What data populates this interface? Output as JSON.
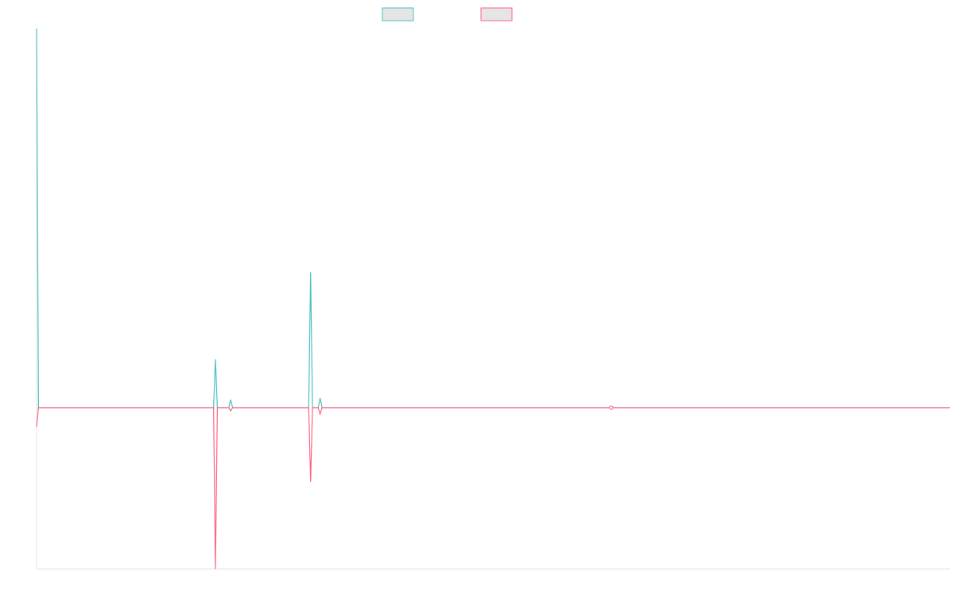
{
  "chart_data": {
    "type": "line",
    "title": "",
    "xlabel": "",
    "ylabel": "",
    "legend_placement": "top-center",
    "grid": false,
    "x": [
      0,
      1,
      2,
      3,
      4,
      5,
      6,
      7,
      8,
      9,
      10,
      11,
      12,
      13,
      14,
      15,
      16,
      17,
      18,
      19,
      20,
      21,
      22,
      23,
      24,
      25,
      26,
      27,
      28,
      29,
      30,
      31,
      32,
      33,
      34,
      35,
      36,
      37,
      38,
      39,
      40,
      41,
      42,
      43,
      44,
      45,
      46,
      47,
      48,
      49,
      50,
      51,
      52,
      53,
      54,
      55,
      56,
      57,
      58,
      59,
      60,
      61,
      62,
      63,
      64,
      65,
      66,
      67,
      68,
      69,
      70,
      71,
      72,
      73,
      74,
      75,
      76,
      77,
      78,
      79,
      80,
      81,
      82,
      83,
      84,
      85,
      86,
      87,
      88,
      89,
      90,
      91,
      92,
      93,
      94,
      95,
      96,
      97,
      98,
      99,
      100,
      101,
      102,
      103,
      104,
      105,
      106,
      107,
      108,
      109,
      110,
      111,
      112,
      113,
      114,
      115,
      116,
      117,
      118,
      119,
      120,
      121,
      122,
      123,
      124,
      125,
      126,
      127,
      128,
      129,
      130,
      131,
      132,
      133,
      134,
      135,
      136,
      137,
      138,
      139,
      140,
      141,
      142,
      143,
      144,
      145,
      146,
      147,
      148,
      149,
      150,
      151,
      152,
      153,
      154,
      155,
      156,
      157,
      158,
      159,
      160,
      161,
      162,
      163,
      164,
      165,
      166,
      167,
      168,
      169,
      170,
      171,
      172,
      173,
      174,
      175,
      176,
      177,
      178,
      179,
      180,
      181,
      182,
      183,
      184,
      185,
      186,
      187,
      188,
      189,
      190,
      191,
      192,
      193,
      194,
      195,
      196,
      197,
      198,
      199,
      200,
      201,
      202,
      203,
      204,
      205,
      206,
      207,
      208,
      209,
      210,
      211,
      212,
      213,
      214,
      215,
      216,
      217,
      218,
      219,
      220,
      221,
      222,
      223,
      224,
      225,
      226,
      227,
      228,
      229,
      230,
      231,
      232,
      233,
      234,
      235,
      236,
      237,
      238,
      239,
      240,
      241,
      242,
      243,
      244,
      245,
      246,
      247,
      248,
      249,
      250,
      251,
      252,
      253,
      254,
      255,
      256,
      257,
      258,
      259,
      260,
      261,
      262,
      263,
      264,
      265,
      266,
      267,
      268,
      269,
      270,
      271,
      272,
      273,
      274,
      275,
      276,
      277,
      278,
      279,
      280,
      281,
      282,
      283,
      284,
      285,
      286,
      287,
      288,
      289,
      290,
      291,
      292,
      293,
      294,
      295,
      296,
      297,
      298,
      299,
      300,
      301,
      302,
      303,
      304,
      305,
      306,
      307,
      308,
      309,
      310,
      311,
      312,
      313,
      314,
      315,
      316,
      317,
      318,
      319,
      320,
      321,
      322,
      323,
      324,
      325,
      326,
      327,
      328,
      329,
      330,
      331,
      332,
      333,
      334,
      335,
      336,
      337,
      338,
      339,
      340,
      341,
      342,
      343,
      344,
      345,
      346,
      347,
      348,
      349,
      350,
      351,
      352,
      353,
      354,
      355,
      356,
      357,
      358,
      359,
      360,
      361,
      362,
      363,
      364,
      365,
      366,
      367,
      368,
      369,
      370,
      371,
      372,
      373,
      374,
      375,
      376,
      377,
      378,
      379,
      380,
      381,
      382,
      383,
      384,
      385,
      386,
      387,
      388,
      389,
      390,
      391,
      392,
      393,
      394,
      395,
      396,
      397,
      398,
      399,
      400,
      401,
      402,
      403,
      404,
      405,
      406,
      407,
      408,
      409,
      410,
      411,
      412,
      413,
      414,
      415,
      416,
      417,
      418,
      419,
      420,
      421,
      422,
      423,
      424,
      425,
      426,
      427,
      428,
      429,
      430,
      431,
      432,
      433,
      434,
      435,
      436,
      437,
      438,
      439,
      440,
      441,
      442,
      443,
      444,
      445,
      446,
      447,
      448,
      449,
      450,
      451,
      452,
      453,
      454,
      455,
      456,
      457,
      458,
      459,
      460,
      461,
      462,
      463,
      464,
      465,
      466,
      467,
      468,
      469,
      470,
      471,
      472,
      473,
      474,
      475,
      476,
      477,
      478,
      479,
      480
    ],
    "xlim": [
      0,
      480
    ],
    "ylim": [
      -100,
      235
    ],
    "series": [
      {
        "name": "",
        "color": "#4BC0C0",
        "points": [
          [
            0,
            235
          ],
          [
            1,
            0
          ],
          [
            93,
            0
          ],
          [
            94,
            30
          ],
          [
            95,
            0
          ],
          [
            101,
            0
          ],
          [
            102,
            5
          ],
          [
            103,
            0
          ],
          [
            143,
            0
          ],
          [
            144,
            84
          ],
          [
            145,
            0
          ],
          [
            148,
            0
          ],
          [
            149,
            6
          ],
          [
            150,
            0
          ],
          [
            301,
            0
          ],
          [
            302,
            0
          ],
          [
            303,
            0
          ],
          [
            480,
            0
          ]
        ]
      },
      {
        "name": "",
        "color": "#FF6384",
        "points": [
          [
            0,
            -12
          ],
          [
            1,
            0
          ],
          [
            92,
            0
          ],
          [
            93,
            0
          ],
          [
            94,
            -100
          ],
          [
            95,
            0
          ],
          [
            101,
            0
          ],
          [
            102,
            -2
          ],
          [
            103,
            0
          ],
          [
            143,
            0
          ],
          [
            144,
            -46
          ],
          [
            145,
            0
          ],
          [
            148,
            0
          ],
          [
            149,
            -4
          ],
          [
            150,
            0
          ],
          [
            301,
            0
          ],
          [
            302,
            0
          ],
          [
            303,
            0
          ],
          [
            480,
            0
          ]
        ]
      }
    ]
  }
}
